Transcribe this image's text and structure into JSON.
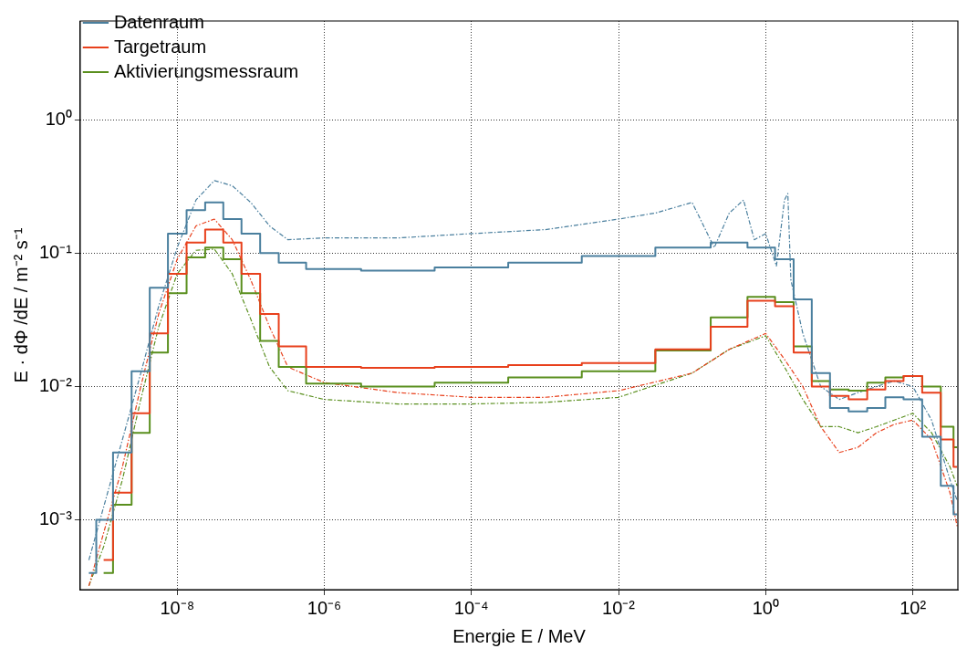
{
  "chart_data": {
    "type": "step",
    "xlabel": "Energie E / MeV",
    "ylabel": "E · dΦ /dE / m⁻² s⁻¹",
    "log": "xy",
    "grid": true,
    "legend": "top left",
    "xlim": [
      4.8e-10,
      410
    ],
    "ylim": [
      0.0003,
      5.5
    ],
    "xticks": [
      {
        "value": 1e-08,
        "label": "10⁻⁸"
      },
      {
        "value": 1e-06,
        "label": "10⁻⁶"
      },
      {
        "value": 0.0001,
        "label": "10⁻⁴"
      },
      {
        "value": 0.01,
        "label": "10⁻²"
      },
      {
        "value": 1,
        "label": "10⁰"
      },
      {
        "value": 100,
        "label": "10²"
      }
    ],
    "yticks": [
      {
        "value": 0.001,
        "label": "10⁻³"
      },
      {
        "value": 0.01,
        "label": "10⁻²"
      },
      {
        "value": 0.1,
        "label": "10⁻¹"
      },
      {
        "value": 1,
        "label": "10⁰"
      }
    ],
    "x": [
      6.3e-10,
      1e-09,
      1.8e-09,
      3.2e-09,
      5.6e-09,
      1e-08,
      1.8e-08,
      3.2e-08,
      5.6e-08,
      1e-07,
      1.8e-07,
      3.2e-07,
      1e-06,
      1e-05,
      0.0001,
      0.001,
      0.01,
      0.1,
      0.32,
      1,
      1.8,
      3.2,
      5.6,
      10,
      18,
      32,
      56,
      100,
      180,
      320,
      400
    ],
    "series": [
      {
        "name": "Datenraum",
        "color": "#4a7f9e",
        "values": [
          0.0004,
          0.001,
          0.0032,
          0.013,
          0.055,
          0.14,
          0.21,
          0.24,
          0.18,
          0.14,
          0.1,
          0.085,
          0.076,
          0.074,
          0.078,
          0.085,
          0.095,
          0.11,
          0.12,
          0.11,
          0.09,
          0.045,
          0.0126,
          0.0069,
          0.0065,
          0.0069,
          0.0083,
          0.008,
          0.0042,
          0.0018,
          0.0011
        ]
      },
      {
        "name": "Targetraum",
        "color": "#e8401c",
        "values": [
          null,
          0.0005,
          0.0016,
          0.0063,
          0.025,
          0.07,
          0.12,
          0.15,
          0.12,
          0.07,
          0.035,
          0.02,
          0.014,
          0.0138,
          0.014,
          0.0145,
          0.015,
          0.019,
          0.028,
          0.044,
          0.04,
          0.018,
          0.01,
          0.0085,
          0.008,
          0.0095,
          0.011,
          0.012,
          0.009,
          0.004,
          0.0025
        ]
      },
      {
        "name": "Aktivierungsmessraum",
        "color": "#5a8f1e",
        "values": [
          null,
          0.0004,
          0.0013,
          0.0045,
          0.018,
          0.05,
          0.093,
          0.11,
          0.09,
          0.05,
          0.022,
          0.014,
          0.0105,
          0.01,
          0.0107,
          0.0117,
          0.013,
          0.0186,
          0.033,
          0.047,
          0.043,
          0.02,
          0.011,
          0.0095,
          0.0093,
          0.0107,
          0.0117,
          0.012,
          0.01,
          0.005,
          0.0035
        ]
      },
      {
        "type": "line",
        "line_style": "dashed",
        "color": "#4a7f9e",
        "x": [
          6.3e-10,
          1.8e-09,
          3.2e-09,
          5.6e-09,
          1e-08,
          1.8e-08,
          3.2e-08,
          5.6e-08,
          1e-07,
          1.8e-07,
          3.2e-07,
          1e-06,
          1e-05,
          0.0001,
          0.001,
          0.01,
          0.032,
          0.1,
          0.2,
          0.32,
          0.5,
          0.7,
          1,
          1.4,
          1.8,
          2,
          2.2,
          3.2,
          5.6,
          10,
          18,
          32,
          56,
          100,
          180,
          320,
          400
        ],
        "values": [
          0.0005,
          0.004,
          0.0126,
          0.04,
          0.11,
          0.25,
          0.35,
          0.32,
          0.24,
          0.16,
          0.126,
          0.13,
          0.13,
          0.14,
          0.15,
          0.18,
          0.2,
          0.24,
          0.11,
          0.2,
          0.25,
          0.126,
          0.14,
          0.08,
          0.25,
          0.28,
          0.063,
          0.025,
          0.01,
          0.008,
          0.009,
          0.01,
          0.011,
          0.01,
          0.0056,
          0.002,
          0.0014
        ]
      },
      {
        "type": "line",
        "line_style": "dashed",
        "color": "#e8401c",
        "values": [
          0.00032,
          0.0008,
          0.0025,
          0.01,
          0.035,
          0.09,
          0.16,
          0.18,
          0.126,
          0.063,
          0.028,
          0.014,
          0.0107,
          0.009,
          0.0083,
          0.0083,
          0.0093,
          0.0126,
          0.019,
          0.025,
          0.016,
          0.01,
          0.005,
          0.0032,
          0.0035,
          0.0045,
          0.0052,
          0.0056,
          0.004,
          0.0016,
          0.0009
        ]
      },
      {
        "type": "line",
        "line_style": "dashed",
        "color": "#5a8f1e",
        "values": [
          0.00032,
          0.00063,
          0.002,
          0.008,
          0.028,
          0.07,
          0.105,
          0.107,
          0.07,
          0.032,
          0.014,
          0.0093,
          0.008,
          0.0074,
          0.0074,
          0.0076,
          0.0083,
          0.0126,
          0.019,
          0.024,
          0.014,
          0.008,
          0.005,
          0.005,
          0.0045,
          0.005,
          0.0056,
          0.0063,
          0.0045,
          0.0025,
          0.0018
        ]
      }
    ]
  }
}
